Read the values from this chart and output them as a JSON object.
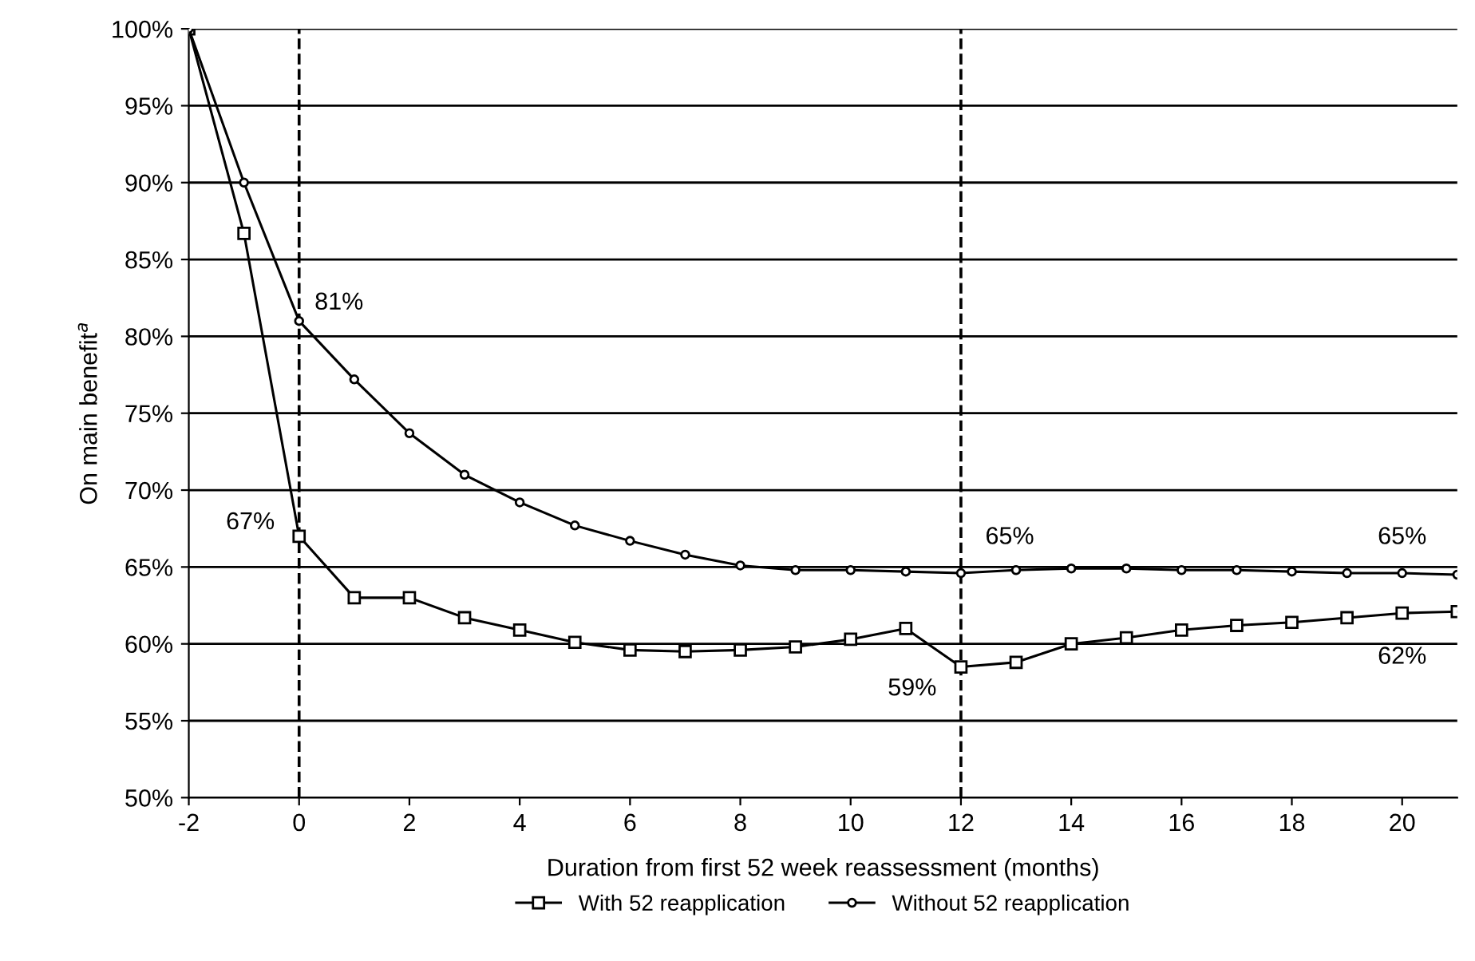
{
  "chart_data": {
    "type": "line",
    "xlabel": "Duration from first 52 week reassessment (months)",
    "ylabel": "On main benefit$^{a}$",
    "x": [
      -2,
      -1,
      0,
      1,
      2,
      3,
      4,
      5,
      6,
      7,
      8,
      9,
      10,
      11,
      12,
      13,
      14,
      15,
      16,
      17,
      18,
      19,
      20,
      21
    ],
    "series": [
      {
        "name": "With 52 reapplication",
        "color": "#000000",
        "marker": "square",
        "values": [
          100,
          86.7,
          67,
          63,
          63,
          61.7,
          60.9,
          60.1,
          59.6,
          59.5,
          59.6,
          59.8,
          60.3,
          61,
          58.5,
          58.8,
          60,
          60.4,
          60.9,
          61.2,
          61.4,
          61.7,
          62,
          62.1
        ]
      },
      {
        "name": "Without 52 reapplication",
        "color": "#000000",
        "marker": "circle",
        "values": [
          100,
          90,
          81,
          77.2,
          73.7,
          71,
          69.2,
          67.7,
          66.7,
          65.8,
          65.1,
          64.8,
          64.8,
          64.7,
          64.6,
          64.8,
          64.9,
          64.9,
          64.8,
          64.8,
          64.7,
          64.6,
          64.6,
          64.5
        ]
      }
    ],
    "xlim": [
      -2,
      21
    ],
    "xticks": [
      -2,
      0,
      2,
      4,
      6,
      8,
      10,
      12,
      14,
      16,
      18,
      20
    ],
    "ylim": [
      50,
      100
    ],
    "yticks": [
      {
        "value": 50,
        "label": "50%"
      },
      {
        "value": 55,
        "label": "55%"
      },
      {
        "value": 60,
        "label": "60%"
      },
      {
        "value": 65,
        "label": "65%"
      },
      {
        "value": 70,
        "label": "70%"
      },
      {
        "value": 75,
        "label": "75%"
      },
      {
        "value": 80,
        "label": "80%"
      },
      {
        "value": 85,
        "label": "85%"
      },
      {
        "value": 90,
        "label": "90%"
      },
      {
        "value": 95,
        "label": "95%"
      },
      {
        "value": 100,
        "label": "100%"
      }
    ],
    "grid": "y",
    "legend": "bottom",
    "line_style": "solid",
    "ref_lines": [
      {
        "axis": "x",
        "value": 0,
        "color": "#000000",
        "line_style": "dashed"
      },
      {
        "axis": "x",
        "value": 12,
        "color": "#000000",
        "line_style": "dashed"
      }
    ],
    "annotations": [
      {
        "text": "67%",
        "x": 0,
        "y": 67
      },
      {
        "text": "81%",
        "x": 0,
        "y": 81
      },
      {
        "text": "59%",
        "x": 12,
        "y": 58.5
      },
      {
        "text": "65%",
        "x": 12,
        "y": 64.6
      },
      {
        "text": "65%",
        "x": 20,
        "y": 64.6
      },
      {
        "text": "62%",
        "x": 20,
        "y": 62
      }
    ]
  }
}
